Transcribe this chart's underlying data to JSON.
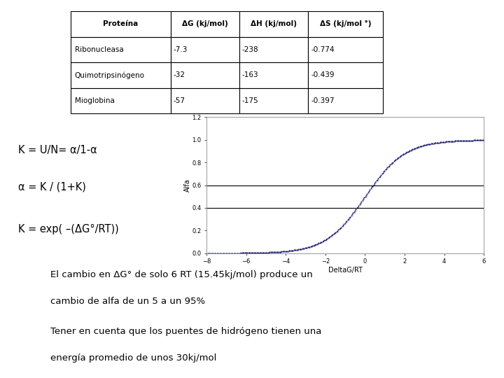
{
  "table_headers": [
    "Proteína",
    "ΔG (kj/mol)",
    "ΔH (kj/mol)",
    "ΔS (kj/mol °)"
  ],
  "table_rows": [
    [
      "Ribonucleasa",
      "-7.3",
      "-238",
      "-0.774"
    ],
    [
      "Quimotripsinógeno",
      "-32",
      "-163",
      "-0.439"
    ],
    [
      "Mioglobina",
      "-57",
      "-175",
      "-0.397"
    ]
  ],
  "equations": [
    "K = U/N= α/1-α",
    "α = K / (1+K)",
    "K = exp( –(ΔG°/RT))"
  ],
  "plot_xlabel": "DeltaG/RT",
  "plot_ylabel": "Alfa",
  "plot_xlim": [
    -8,
    6
  ],
  "plot_ylim": [
    0,
    1.2
  ],
  "plot_yticks": [
    0,
    0.2,
    0.4,
    0.6,
    0.8,
    1.0,
    1.2
  ],
  "plot_xticks": [
    -8,
    -6,
    -4,
    -2,
    0,
    2,
    4,
    6
  ],
  "hline_values": [
    0.4,
    0.6
  ],
  "dot_color": "#1a1a6e",
  "text_bottom_lines": [
    "El cambio en ΔG° de solo 6 RT (15.45kj/mol) produce un",
    "cambio de alfa de un 5 a un 95%",
    "",
    "Tener en cuenta que los puentes de hidrógeno tienen una",
    "energía promedio de unos 30kj/mol"
  ],
  "background_color": "#ffffff"
}
